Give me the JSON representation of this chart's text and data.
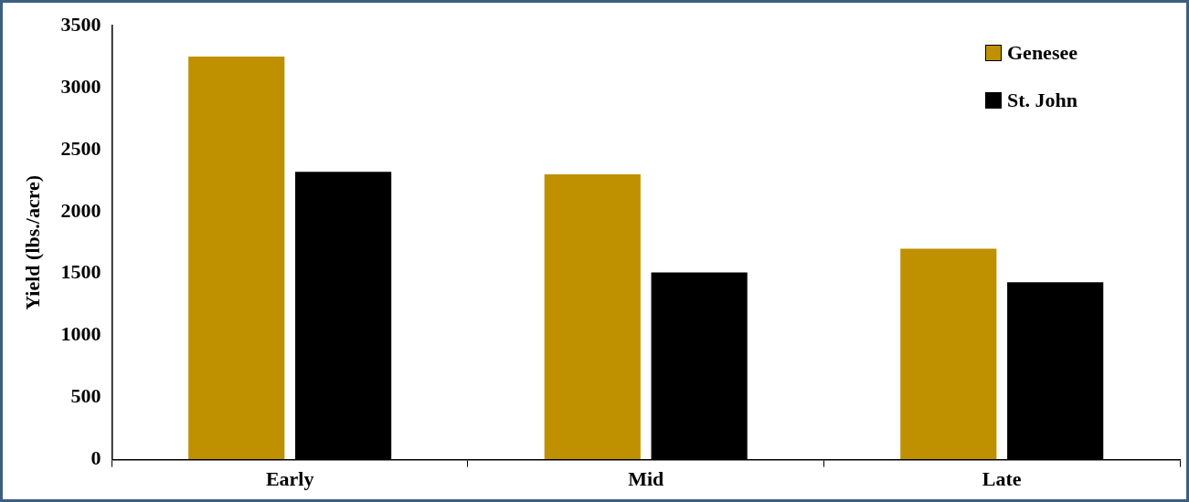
{
  "chart_data": {
    "type": "bar",
    "ylabel": "Yield (lbs./acre)",
    "categories": [
      "Early",
      "Mid",
      "Late"
    ],
    "series": [
      {
        "name": "Genesee",
        "color": "#bf9000",
        "values": [
          3250,
          2300,
          1700
        ]
      },
      {
        "name": "St. John",
        "color": "#000000",
        "values": [
          2320,
          1510,
          1430
        ]
      }
    ],
    "ylim": [
      0,
      3500
    ],
    "yticks": [
      0,
      500,
      1000,
      1500,
      2000,
      2500,
      3000,
      3500
    ],
    "grid": false,
    "legend": "top right"
  }
}
